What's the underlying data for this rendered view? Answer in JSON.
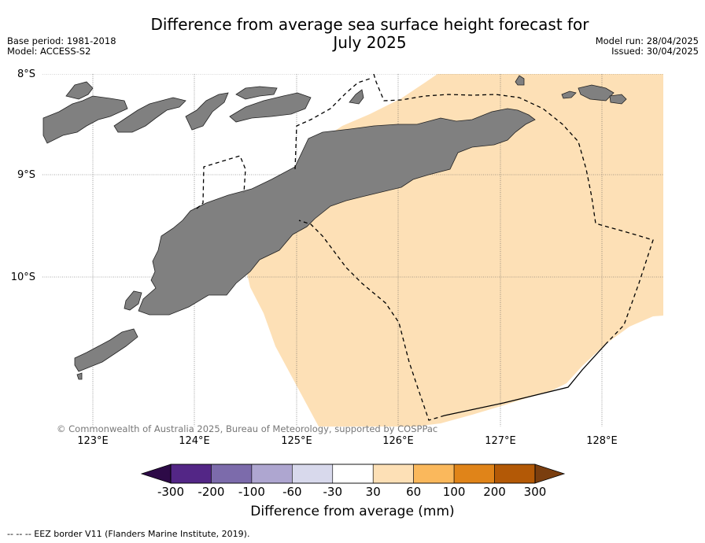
{
  "title": {
    "line1": "Difference from average sea surface height forecast for",
    "line2": "July 2025"
  },
  "meta_left": {
    "base_period": "Base period: 1981-2018",
    "model": "Model: ACCESS-S2"
  },
  "meta_right": {
    "model_run": "Model run: 28/04/2025",
    "issued": "Issued: 30/04/2025"
  },
  "map": {
    "lat_labels": [
      "8°S",
      "9°S",
      "10°S"
    ],
    "lon_labels": [
      "123°E",
      "124°E",
      "125°E",
      "126°E",
      "127°E",
      "128°E"
    ],
    "land_color": "#808080",
    "anomaly_fill_color": "#fde0b6",
    "anomaly_class": "30 to 60",
    "copyright": "© Commonwealth of Australia 2025, Bureau of Meteorology, supported by COSPPac"
  },
  "colorbar": {
    "label": "Difference from average (mm)",
    "ticks": [
      "-300",
      "-200",
      "-100",
      "-60",
      "-30",
      "30",
      "60",
      "100",
      "200",
      "300"
    ],
    "under_color": "#2d0a47",
    "over_color": "#7a3e0f",
    "colors": [
      "#532686",
      "#7c6bab",
      "#aea6d0",
      "#d8d9ec",
      "#ffffff",
      "#fde0b6",
      "#fab85c",
      "#e08419",
      "#b35906"
    ]
  },
  "footnote": "--  --  -- EEZ border V11 (Flanders Marine Institute, 2019)."
}
